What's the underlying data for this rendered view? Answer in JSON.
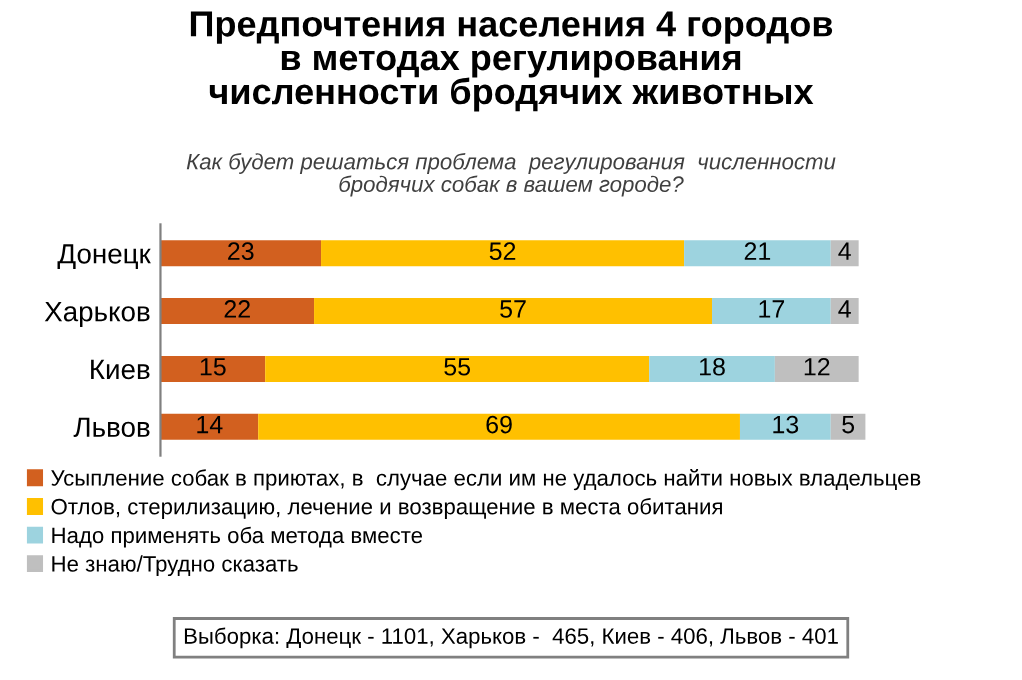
{
  "chart_data": {
    "type": "bar",
    "orientation": "horizontal",
    "stacked": true,
    "title": "Предпочтения населения 4 городов\nв методах регулирования\nчисленности бродячих животных",
    "subtitle": "Как будет решаться проблема  регулирования  численности\nбродячих собак в вашем городе?",
    "categories": [
      "Донецк",
      "Харьков",
      "Киев",
      "Львов"
    ],
    "series": [
      {
        "name": "Усыпление собак в приютах, в  случае если им не удалось найти новых владельцев",
        "color": "#d2601f",
        "values": [
          23,
          22,
          15,
          14
        ]
      },
      {
        "name": "Отлов, стерилизацию, лечение и возвращение в места обитания",
        "color": "#ffc000",
        "values": [
          52,
          57,
          55,
          69
        ]
      },
      {
        "name": "Надо применять оба метода вместе",
        "color": "#9dd3df",
        "values": [
          21,
          17,
          18,
          13
        ]
      },
      {
        "name": "Не знаю/Трудно сказать",
        "color": "#bfbfbf",
        "values": [
          4,
          4,
          12,
          5
        ]
      }
    ],
    "data_labels": true,
    "legend": "bottom",
    "grid": false,
    "annotations": [
      "Выборка: Донецк - 1101, Харьков -  465, Киев - 406, Львов - 401"
    ]
  }
}
